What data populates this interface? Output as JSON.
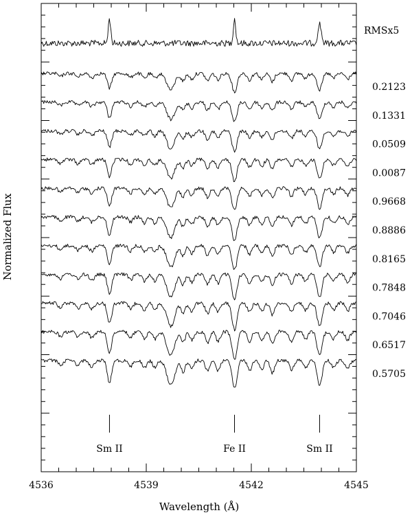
{
  "chart_data": {
    "type": "line",
    "xlabel": "Wavelength (Å)",
    "ylabel": "Normalized Flux",
    "xlim": [
      4536,
      4545
    ],
    "x_ticks": [
      "4536",
      "4539",
      "4542",
      "4545"
    ],
    "grid": false,
    "legend": "none",
    "rms_label": "RMSx5",
    "phases": [
      "0.2123",
      "0.1331",
      "0.0509",
      "0.0087",
      "0.9668",
      "0.8886",
      "0.8165",
      "0.7848",
      "0.7046",
      "0.6517",
      "0.5705"
    ],
    "spectral_lines": [
      {
        "name": "Sm II",
        "wavelength": 4537.95
      },
      {
        "name": "Fe II",
        "wavelength": 4541.52
      },
      {
        "name": "Sm II",
        "wavelength": 4543.95
      }
    ],
    "line_color": "#000000"
  }
}
